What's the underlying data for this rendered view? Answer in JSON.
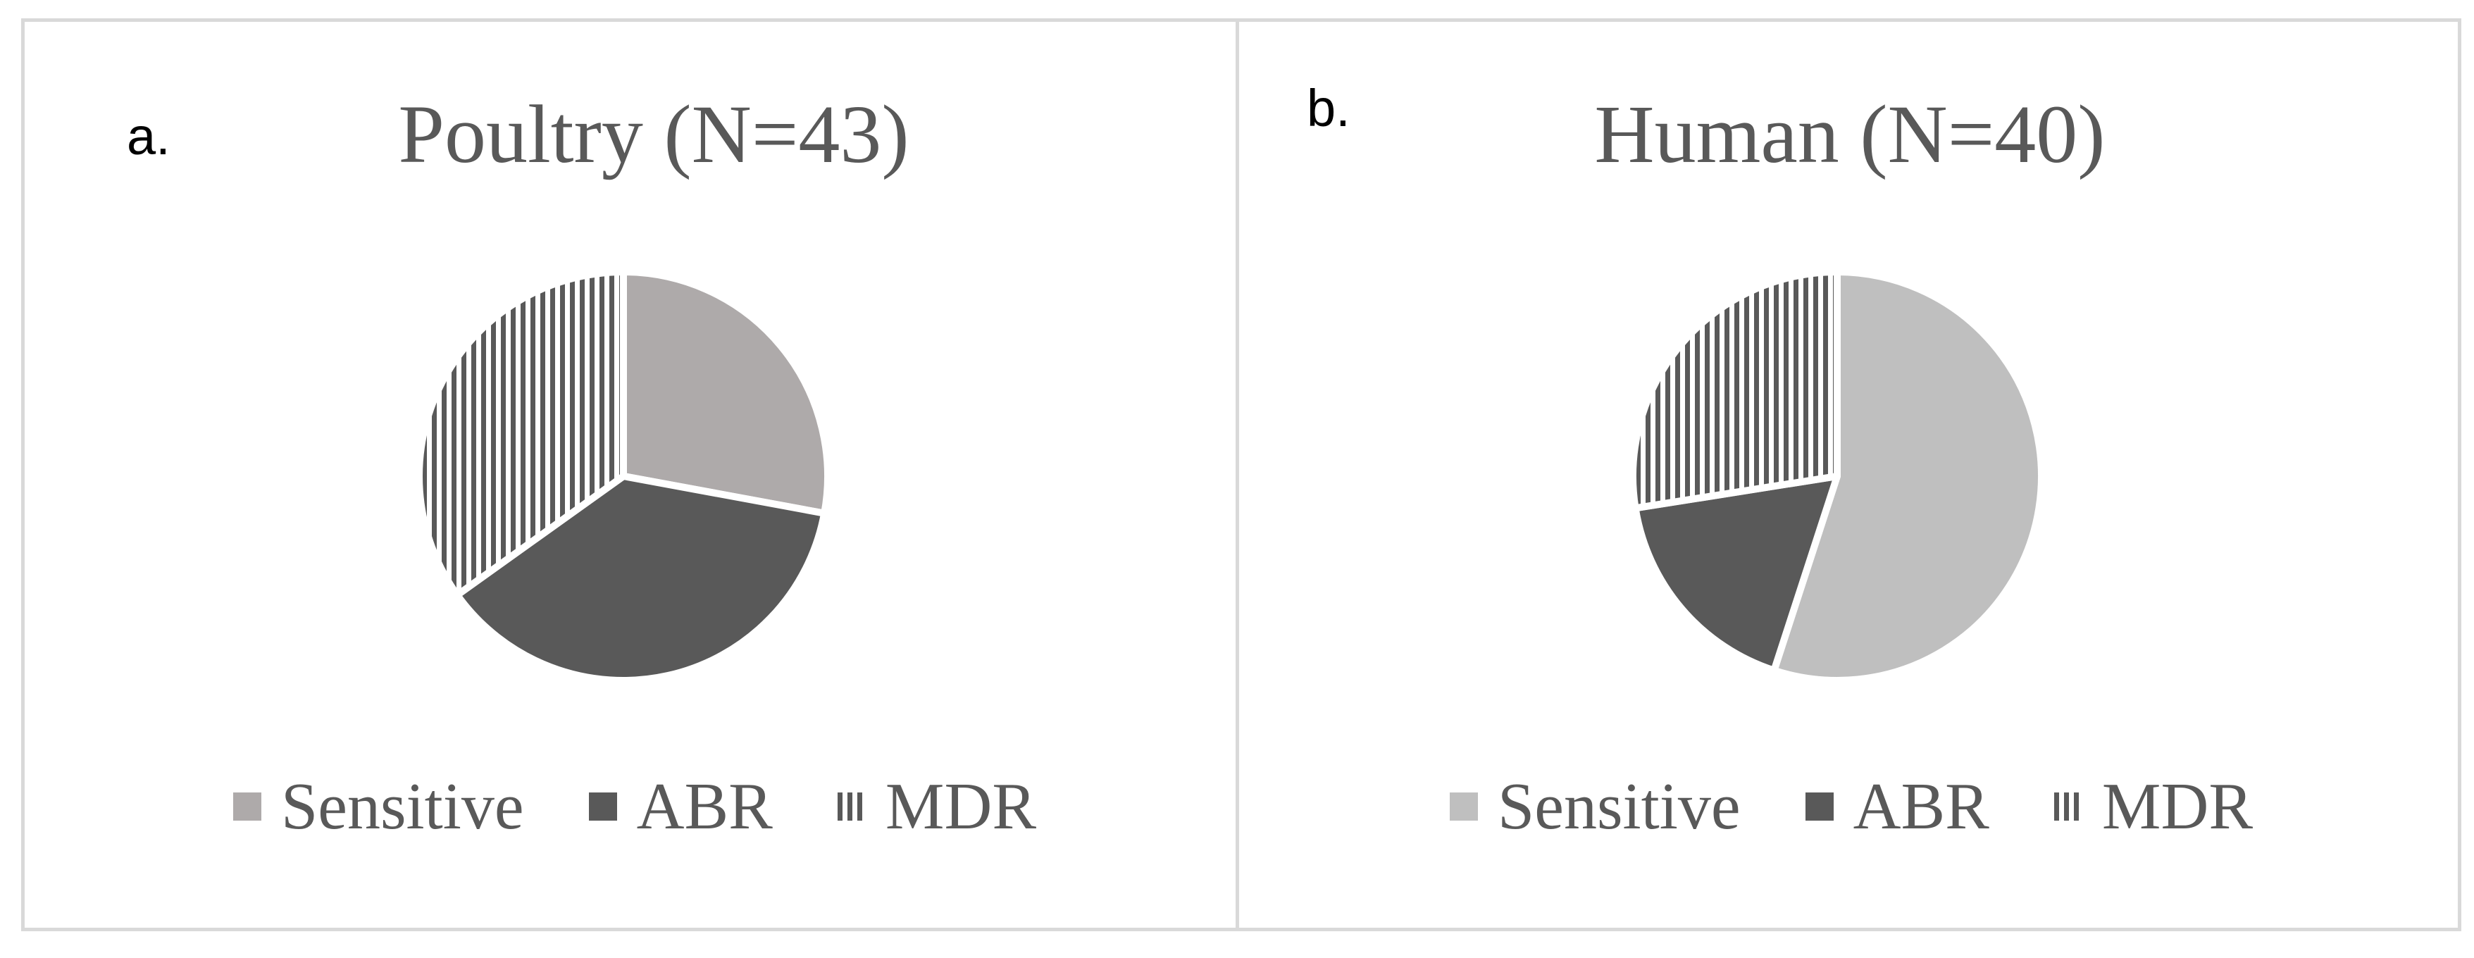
{
  "chart_data": [
    {
      "type": "pie",
      "panel_label": "a.",
      "title": "Poultry (N=43)",
      "categories": [
        "Sensitive",
        "ABR",
        "MDR"
      ],
      "values": [
        12,
        16,
        15
      ],
      "fills": [
        "solid",
        "solid",
        "vertical-stripes"
      ],
      "colors": [
        "#aeaaaa",
        "#595959",
        "#595959"
      ],
      "legend_position": "bottom"
    },
    {
      "type": "pie",
      "panel_label": "b.",
      "title": "Human (N=40)",
      "categories": [
        "Sensitive",
        "ABR",
        "MDR"
      ],
      "values": [
        22,
        7,
        11
      ],
      "fills": [
        "solid",
        "solid",
        "vertical-stripes"
      ],
      "colors": [
        "#bfbfbf",
        "#595959",
        "#595959"
      ],
      "legend_position": "bottom"
    }
  ]
}
